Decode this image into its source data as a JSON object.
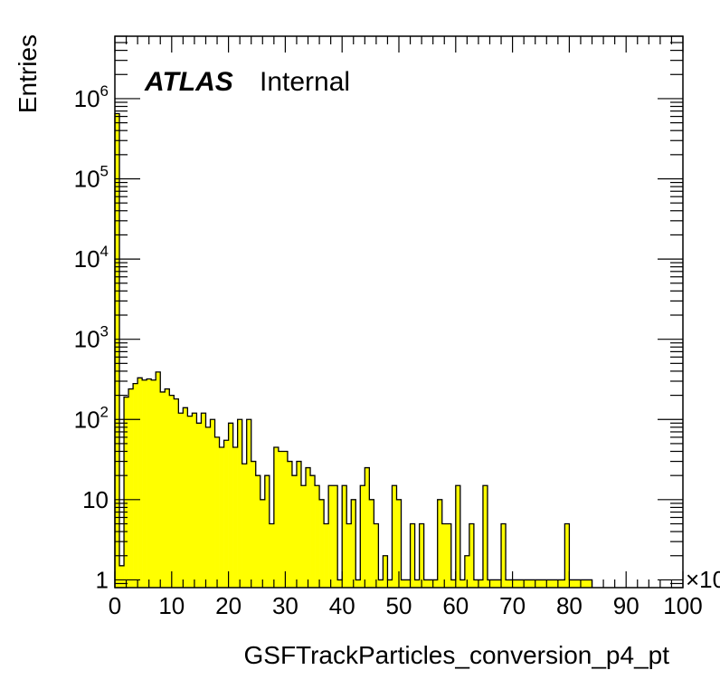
{
  "chart_data": {
    "type": "bar",
    "title": "",
    "xlabel": "GSFTrackParticles_conversion_p4_pt",
    "ylabel": "Entries",
    "x_multiplier_label": "×10",
    "label_main": "ATLAS",
    "label_sub": "Internal",
    "xlim": [
      0,
      100
    ],
    "ylim": [
      0.8,
      6000000
    ],
    "log_y": true,
    "x_tick_labels": [
      "0",
      "10",
      "20",
      "30",
      "40",
      "50",
      "60",
      "70",
      "80",
      "90",
      "100"
    ],
    "y_tick_labels": [
      {
        "value": 1,
        "base": "1",
        "exp": ""
      },
      {
        "value": 10,
        "base": "10",
        "exp": ""
      },
      {
        "value": 100,
        "base": "10",
        "exp": "2"
      },
      {
        "value": 1000,
        "base": "10",
        "exp": "3"
      },
      {
        "value": 10000,
        "base": "10",
        "exp": "4"
      },
      {
        "value": 100000,
        "base": "10",
        "exp": "5"
      },
      {
        "value": 1000000,
        "base": "10",
        "exp": "6"
      }
    ],
    "fill_color": "#ffff00",
    "line_color": "#000000",
    "bin_width": 0.8,
    "series": [
      {
        "values": [
          650000,
          1.5,
          190,
          240,
          280,
          330,
          310,
          320,
          310,
          390,
          220,
          240,
          200,
          180,
          120,
          140,
          110,
          120,
          90,
          120,
          80,
          100,
          60,
          45,
          55,
          90,
          45,
          100,
          28,
          100,
          30,
          20,
          10,
          20,
          5,
          45,
          40,
          40,
          30,
          20,
          30,
          15,
          25,
          20,
          15,
          10,
          5,
          15,
          15,
          1,
          15,
          5,
          10,
          1,
          15,
          25,
          10,
          5,
          1,
          2,
          1,
          15,
          10,
          1,
          1,
          5,
          1,
          5,
          1,
          1,
          1,
          10,
          5,
          5,
          1,
          15,
          1,
          2,
          5,
          1,
          1,
          15,
          1,
          1,
          1,
          5,
          1,
          1,
          1,
          1,
          1,
          1,
          1,
          1,
          1,
          1,
          1,
          1,
          1,
          5,
          1,
          1,
          1,
          1,
          1
        ]
      }
    ]
  }
}
